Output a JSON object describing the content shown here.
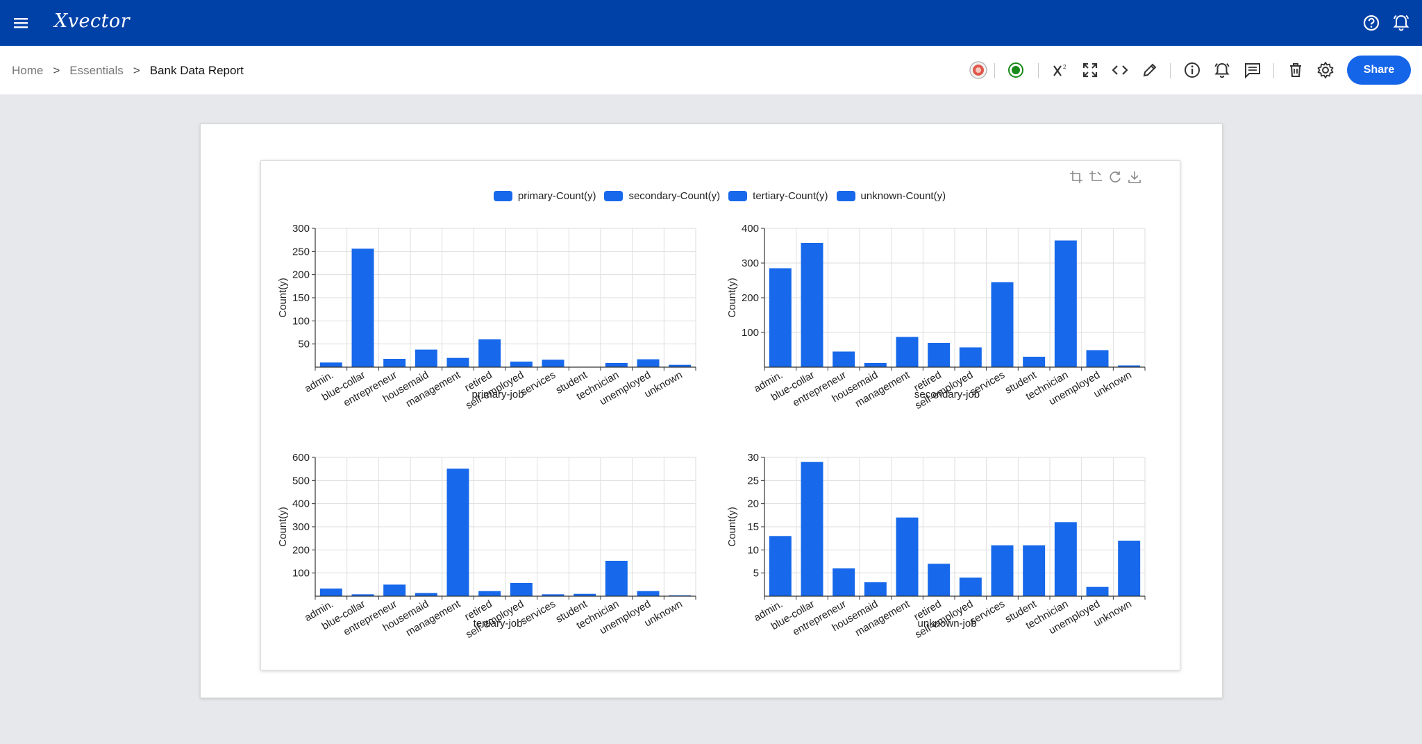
{
  "app": {
    "title": "Xvector"
  },
  "icons": {
    "menu": "hamburger-menu-icon",
    "help": "help-circle-icon",
    "notifications": "bell-alert-icon"
  },
  "breadcrumb": [
    {
      "label": "Home"
    },
    {
      "label": "Essentials"
    },
    {
      "label": "Bank Data Report"
    }
  ],
  "breadcrumb_separator": ">",
  "toolbar": {
    "items": [
      "avatar-icon",
      "status-dot-icon",
      "superscript-icon",
      "fullscreen-icon",
      "code-icon",
      "pencil-icon",
      "info-icon",
      "alarm-bell-icon",
      "comment-icon",
      "trash-icon",
      "settings-gear-icon"
    ],
    "share_label": "Share",
    "status_color": "#1a8a1a"
  },
  "chart_controls": [
    "crop-icon",
    "crop-alt-icon",
    "refresh-icon",
    "download-icon"
  ],
  "colors": {
    "bar": "#1768ea",
    "brand": "#0041a8",
    "share": "#1565e8"
  },
  "chart_data": [
    {
      "type": "bar",
      "legend": "primary-Count(y)",
      "categories": [
        "admin.",
        "blue-collar",
        "entrepreneur",
        "housemaid",
        "management",
        "retired",
        "self-employed",
        "services",
        "student",
        "technician",
        "unemployed",
        "unknown"
      ],
      "values": [
        10,
        256,
        18,
        38,
        20,
        60,
        12,
        16,
        0,
        9,
        17,
        5
      ],
      "xlabel": "primary-job",
      "ylabel": "Count(y)",
      "yticks": [
        50,
        100,
        150,
        200,
        250,
        300
      ],
      "ylim": [
        0,
        300
      ]
    },
    {
      "type": "bar",
      "legend": "secondary-Count(y)",
      "categories": [
        "admin.",
        "blue-collar",
        "entrepreneur",
        "housemaid",
        "management",
        "retired",
        "self-employed",
        "services",
        "student",
        "technician",
        "unemployed",
        "unknown"
      ],
      "values": [
        285,
        358,
        45,
        12,
        87,
        70,
        57,
        245,
        30,
        365,
        49,
        5
      ],
      "xlabel": "secondary-job",
      "ylabel": "Count(y)",
      "yticks": [
        100,
        200,
        300,
        400
      ],
      "ylim": [
        0,
        400
      ]
    },
    {
      "type": "bar",
      "legend": "tertiary-Count(y)",
      "categories": [
        "admin.",
        "blue-collar",
        "entrepreneur",
        "housemaid",
        "management",
        "retired",
        "self-employed",
        "services",
        "student",
        "technician",
        "unemployed",
        "unknown"
      ],
      "values": [
        33,
        8,
        50,
        14,
        551,
        22,
        57,
        8,
        10,
        153,
        22,
        4
      ],
      "xlabel": "tertiary-job",
      "ylabel": "Count(y)",
      "yticks": [
        100,
        200,
        300,
        400,
        500,
        600
      ],
      "ylim": [
        0,
        600
      ]
    },
    {
      "type": "bar",
      "legend": "unknown-Count(y)",
      "categories": [
        "admin.",
        "blue-collar",
        "entrepreneur",
        "housemaid",
        "management",
        "retired",
        "self-employed",
        "services",
        "student",
        "technician",
        "unemployed",
        "unknown"
      ],
      "values": [
        13,
        29,
        6,
        3,
        17,
        7,
        4,
        11,
        11,
        16,
        2,
        12
      ],
      "xlabel": "unknown-job",
      "ylabel": "Count(y)",
      "yticks": [
        5,
        10,
        15,
        20,
        25,
        30
      ],
      "ylim": [
        0,
        30
      ]
    }
  ]
}
